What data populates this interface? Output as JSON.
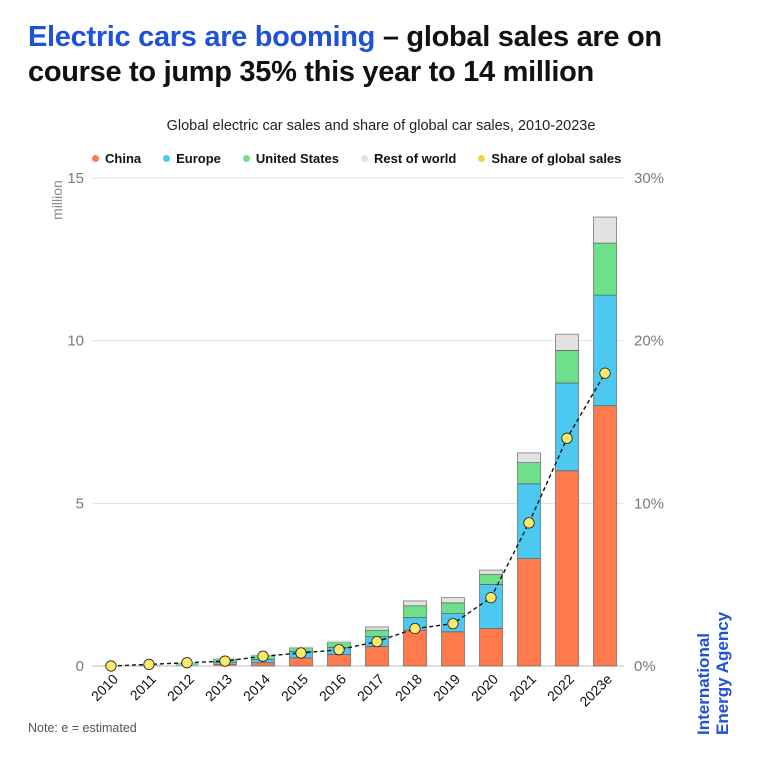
{
  "headline": {
    "accent": "Electric cars are booming",
    "rest": " – global sales are on course to jump 35% this year to 14 million"
  },
  "note": "Note: e = estimated",
  "brand": {
    "line1": "International",
    "line2": "Energy Agency"
  },
  "colors": {
    "accent": "#1f52d6"
  },
  "chart_data": {
    "type": "bar",
    "stacked": true,
    "title": "Global electric car sales and share of global car sales, 2010-2023e",
    "ylabel": "million",
    "ylim": [
      0,
      15
    ],
    "yticks": [
      0,
      5,
      10,
      15
    ],
    "y2lim": [
      0,
      30
    ],
    "y2ticks": [
      "0%",
      "10%",
      "20%",
      "30%"
    ],
    "grid": true,
    "legend_position": "top",
    "categories": [
      "2010",
      "2011",
      "2012",
      "2013",
      "2014",
      "2015",
      "2016",
      "2017",
      "2018",
      "2019",
      "2020",
      "2021",
      "2022",
      "2023e"
    ],
    "series": [
      {
        "name": "China",
        "color": "#ff7a4d",
        "values": [
          0.005,
          0.01,
          0.02,
          0.05,
          0.1,
          0.25,
          0.35,
          0.6,
          1.1,
          1.05,
          1.15,
          3.3,
          6.0,
          8.0
        ]
      },
      {
        "name": "Europe",
        "color": "#4dc8f0",
        "values": [
          0.002,
          0.01,
          0.03,
          0.07,
          0.1,
          0.2,
          0.22,
          0.3,
          0.39,
          0.56,
          1.36,
          2.3,
          2.7,
          3.4
        ]
      },
      {
        "name": "United States",
        "color": "#6ee08c",
        "values": [
          0.003,
          0.02,
          0.05,
          0.1,
          0.12,
          0.11,
          0.16,
          0.2,
          0.36,
          0.33,
          0.3,
          0.65,
          1.0,
          1.6
        ]
      },
      {
        "name": "Rest of world",
        "color": "#e2e2e2",
        "values": [
          0.001,
          0.005,
          0.01,
          0.02,
          0.03,
          0.04,
          0.06,
          0.1,
          0.15,
          0.16,
          0.14,
          0.3,
          0.5,
          0.8
        ]
      }
    ],
    "line_series": {
      "name": "Share of global sales",
      "color": "#fbe96a",
      "axis": "right",
      "values": [
        0.0,
        0.1,
        0.2,
        0.3,
        0.6,
        0.8,
        1.0,
        1.5,
        2.3,
        2.6,
        4.2,
        8.8,
        14.0,
        18.0
      ]
    }
  }
}
